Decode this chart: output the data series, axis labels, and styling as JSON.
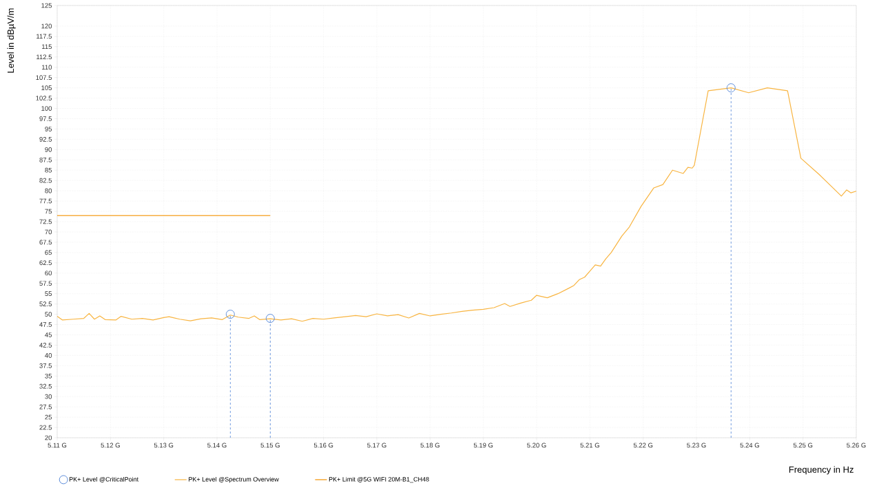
{
  "chart_data": {
    "type": "line",
    "xlabel": "Frequency in Hz",
    "ylabel": "Level in dBµV/m",
    "xlim": [
      5.11,
      5.26
    ],
    "ylim": [
      20,
      125
    ],
    "xticks": [
      {
        "value": 5.11,
        "label": "5.11 G"
      },
      {
        "value": 5.12,
        "label": "5.12 G"
      },
      {
        "value": 5.13,
        "label": "5.13 G"
      },
      {
        "value": 5.14,
        "label": "5.14 G"
      },
      {
        "value": 5.15,
        "label": "5.15 G"
      },
      {
        "value": 5.16,
        "label": "5.16 G"
      },
      {
        "value": 5.17,
        "label": "5.17 G"
      },
      {
        "value": 5.18,
        "label": "5.18 G"
      },
      {
        "value": 5.19,
        "label": "5.19 G"
      },
      {
        "value": 5.2,
        "label": "5.20 G"
      },
      {
        "value": 5.21,
        "label": "5.21 G"
      },
      {
        "value": 5.22,
        "label": "5.22 G"
      },
      {
        "value": 5.23,
        "label": "5.23 G"
      },
      {
        "value": 5.24,
        "label": "5.24 G"
      },
      {
        "value": 5.25,
        "label": "5.25 G"
      },
      {
        "value": 5.26,
        "label": "5.26 G"
      }
    ],
    "yticks": [
      20,
      22.5,
      25,
      27.5,
      30,
      32.5,
      35,
      37.5,
      40,
      42.5,
      45,
      47.5,
      50,
      52.5,
      55,
      57.5,
      60,
      62.5,
      65,
      67.5,
      70,
      72.5,
      75,
      77.5,
      80,
      82.5,
      85,
      87.5,
      90,
      92.5,
      95,
      97.5,
      100,
      102.5,
      105,
      107.5,
      110,
      112.5,
      115,
      117.5,
      120,
      125
    ],
    "grid": true,
    "legend": "bottom",
    "series": [
      {
        "name": "PK+ Level @CriticalPoint",
        "type": "lollipop",
        "color": "#4a7fd6",
        "marker": "circle",
        "line_style": "dashed",
        "x": [
          5.1425,
          5.15,
          5.2365
        ],
        "values": [
          50,
          49,
          105
        ]
      },
      {
        "name": "PK+ Level @Spectrum Overview",
        "color": "#f8b440",
        "marker": "none",
        "line_style": "solid",
        "x": [
          5.11,
          5.111,
          5.113,
          5.115,
          5.116,
          5.117,
          5.118,
          5.119,
          5.121,
          5.122,
          5.124,
          5.126,
          5.128,
          5.13,
          5.131,
          5.133,
          5.135,
          5.137,
          5.139,
          5.141,
          5.1425,
          5.144,
          5.146,
          5.147,
          5.148,
          5.15,
          5.152,
          5.154,
          5.156,
          5.158,
          5.16,
          5.162,
          5.164,
          5.166,
          5.168,
          5.17,
          5.172,
          5.174,
          5.176,
          5.178,
          5.18,
          5.182,
          5.184,
          5.186,
          5.188,
          5.19,
          5.192,
          5.194,
          5.195,
          5.197,
          5.199,
          5.2,
          5.202,
          5.204,
          5.206,
          5.207,
          5.208,
          5.209,
          5.21,
          5.211,
          5.212,
          5.213,
          5.214,
          5.216,
          5.2174,
          5.2196,
          5.222,
          5.2237,
          5.2255,
          5.2275,
          5.2284,
          5.2292,
          5.2296,
          5.2322,
          5.2365,
          5.2398,
          5.2433,
          5.2471,
          5.2496,
          5.253,
          5.2572,
          5.2582,
          5.259,
          5.26
        ],
        "values": [
          49.5,
          48.6,
          48.8,
          49.0,
          50.2,
          48.8,
          49.6,
          48.7,
          48.6,
          49.5,
          48.8,
          49.0,
          48.6,
          49.2,
          49.4,
          48.8,
          48.4,
          48.9,
          49.1,
          48.7,
          49.8,
          49.3,
          49.0,
          49.6,
          48.7,
          48.9,
          48.6,
          48.9,
          48.3,
          49.0,
          48.8,
          49.1,
          49.4,
          49.7,
          49.4,
          50.1,
          49.6,
          49.9,
          49.1,
          50.2,
          49.6,
          50.0,
          50.3,
          50.7,
          51.0,
          51.2,
          51.6,
          52.6,
          51.9,
          52.7,
          53.4,
          54.6,
          54.0,
          55.0,
          56.3,
          57.0,
          58.4,
          59.0,
          60.5,
          62.0,
          61.7,
          63.5,
          65.0,
          69.0,
          71.2,
          76.2,
          80.7,
          81.5,
          85.0,
          84.2,
          85.7,
          85.5,
          86.2,
          104.3,
          105.0,
          103.8,
          105.0,
          104.3,
          87.9,
          84.0,
          78.7,
          80.2,
          79.5,
          79.9
        ]
      },
      {
        "name": "PK+ Limit @5G WIFI  20M-B1_CH48",
        "color": "#f39200",
        "marker": "none",
        "line_style": "solid",
        "x": [
          5.11,
          5.15
        ],
        "values": [
          74,
          74
        ]
      }
    ]
  }
}
